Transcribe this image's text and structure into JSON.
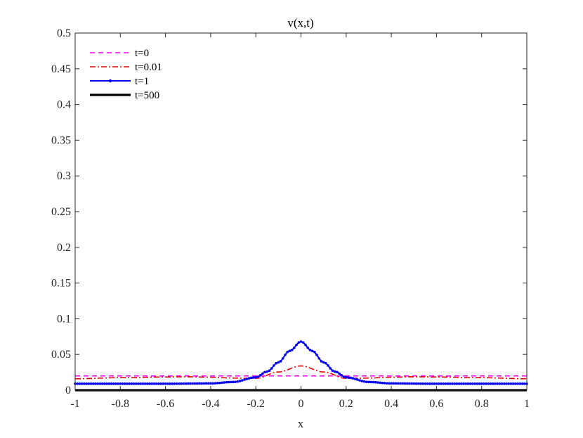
{
  "chart_data": {
    "type": "line",
    "title": "v(x,t)",
    "xlabel": "x",
    "ylabel": "",
    "xlim": [
      -1,
      1
    ],
    "ylim": [
      0,
      0.5
    ],
    "x_ticks": [
      "-1",
      "-0.8",
      "-0.6",
      "-0.4",
      "-0.2",
      "0",
      "0.2",
      "0.4",
      "0.6",
      "0.8",
      "1"
    ],
    "y_ticks": [
      "0",
      "0.05",
      "0.1",
      "0.15",
      "0.2",
      "0.25",
      "0.3",
      "0.35",
      "0.4",
      "0.45",
      "0.5"
    ],
    "grid": false,
    "legend_position": "top-left",
    "series": [
      {
        "name": "t=0",
        "color": "#ff00ff",
        "style": "dashed",
        "x": [
          -1,
          -0.2,
          0,
          0.2,
          1
        ],
        "y": [
          0.02,
          0.02,
          0.02,
          0.02,
          0.02
        ]
      },
      {
        "name": "t=0.01",
        "color": "#e00000",
        "style": "dashdot",
        "x": [
          -1,
          -0.8,
          -0.6,
          -0.5,
          -0.4,
          -0.3,
          -0.2,
          -0.1,
          0,
          0.1,
          0.2,
          0.3,
          0.4,
          0.5,
          0.6,
          0.8,
          1
        ],
        "y": [
          0.016,
          0.0175,
          0.0185,
          0.0188,
          0.0182,
          0.017,
          0.0165,
          0.0255,
          0.034,
          0.0255,
          0.0165,
          0.017,
          0.0182,
          0.0188,
          0.0185,
          0.0175,
          0.016
        ]
      },
      {
        "name": "t=1",
        "color": "#0000ee",
        "style": "solid-dots",
        "x": [
          -1,
          -0.6,
          -0.4,
          -0.3,
          -0.2,
          -0.15,
          -0.1,
          -0.05,
          0,
          0.05,
          0.1,
          0.15,
          0.2,
          0.3,
          0.4,
          0.6,
          1
        ],
        "y": [
          0.009,
          0.009,
          0.0095,
          0.0115,
          0.018,
          0.026,
          0.039,
          0.055,
          0.068,
          0.055,
          0.039,
          0.026,
          0.018,
          0.0115,
          0.0095,
          0.009,
          0.009
        ]
      },
      {
        "name": "t=500",
        "color": "#000000",
        "style": "solid-thick",
        "x": [
          -1,
          1
        ],
        "y": [
          0,
          0
        ]
      }
    ]
  }
}
